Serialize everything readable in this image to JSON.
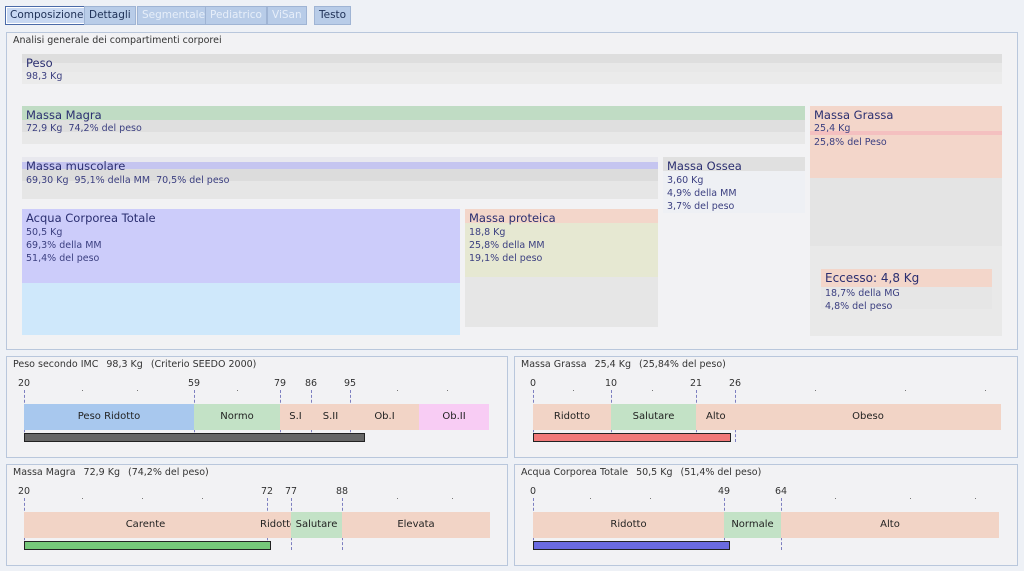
{
  "tabs": [
    {
      "label": "Composizione",
      "state": "active"
    },
    {
      "label": "Dettagli",
      "state": "normal"
    },
    {
      "label": "Segmentale",
      "state": "disabled"
    },
    {
      "label": "Pediatrico",
      "state": "disabled"
    },
    {
      "label": "ViSan",
      "state": "disabled"
    },
    {
      "label": "Testo",
      "state": "normal"
    }
  ],
  "composition": {
    "title": "Analisi generale dei compartimenti corporei",
    "peso": {
      "name": "Peso",
      "value": "98,3 Kg"
    },
    "massa_magra": {
      "name": "Massa Magra",
      "value": "72,9 Kg",
      "pct_peso": "74,2% del peso"
    },
    "massa_grassa": {
      "name": "Massa Grassa",
      "value": "25,4 Kg",
      "pct_peso": "25,8% del Peso"
    },
    "massa_muscolare": {
      "name": "Massa muscolare",
      "value": "69,30 Kg",
      "pct_mm": "95,1% della MM",
      "pct_peso": "70,5% del peso"
    },
    "massa_ossea": {
      "name": "Massa Ossea",
      "value": "3,60 Kg",
      "pct_mm": "4,9% della MM",
      "pct_peso": "3,7% del peso"
    },
    "acqua": {
      "name": "Acqua Corporea Totale",
      "value": "50,5 Kg",
      "pct_mm": "69,3% della MM",
      "pct_peso": "51,4% del peso"
    },
    "proteica": {
      "name": "Massa proteica",
      "value": "18,8 Kg",
      "pct_mm": "25,8% della MM",
      "pct_peso": "19,1% del peso"
    },
    "eccesso": {
      "name": "Eccesso: 4,8 Kg",
      "pct_mg": "18,7% della MG",
      "pct_peso": "4,8% del peso"
    }
  },
  "scales": {
    "imc": {
      "title": "Peso secondo IMC",
      "value": "98,3 Kg",
      "note": "(Criterio SEEDO 2000)",
      "ticks": [
        "20",
        "59",
        "79",
        "86",
        "95"
      ],
      "segments": [
        {
          "label": "Peso Ridotto",
          "color": "#a8c8ee"
        },
        {
          "label": "Normo",
          "color": "#c3e2c6"
        },
        {
          "label": "S.I",
          "color": "#f2d4c6"
        },
        {
          "label": "S.II",
          "color": "#f2d4c6"
        },
        {
          "label": "Ob.I",
          "color": "#f2d4c6"
        },
        {
          "label": "Ob.II",
          "color": "#f8ccf4"
        }
      ],
      "bar_color": "#666666",
      "range": [
        20,
        108
      ],
      "value_num": 98.3
    },
    "grassa": {
      "title": "Massa Grassa",
      "value": "25,4 Kg",
      "note": "(25,84% del peso)",
      "ticks": [
        "0",
        "10",
        "21",
        "26"
      ],
      "segments": [
        {
          "label": "Ridotto",
          "color": "#f2d4c6"
        },
        {
          "label": "Salutare",
          "color": "#c3e2c6"
        },
        {
          "label": "Alto",
          "color": "#f2d4c6"
        },
        {
          "label": "Obeso",
          "color": "#f2d4c6"
        }
      ],
      "bar_color": "#f07878"
    },
    "magra": {
      "title": "Massa Magra",
      "value": "72,9 Kg",
      "note": "(74,2% del peso)",
      "ticks": [
        "20",
        "72",
        "77",
        "88"
      ],
      "segments": [
        {
          "label": "Carente",
          "color": "#f2d4c6"
        },
        {
          "label": "Ridotto",
          "color": "#f2d4c6"
        },
        {
          "label": "Salutare",
          "color": "#c3e2c6"
        },
        {
          "label": "Elevata",
          "color": "#f2d4c6"
        }
      ],
      "bar_color": "#76c87a"
    },
    "acqua": {
      "title": "Acqua Corporea Totale",
      "value": "50,5 Kg",
      "note": "(51,4% del peso)",
      "ticks": [
        "0",
        "49",
        "64"
      ],
      "segments": [
        {
          "label": "Ridotto",
          "color": "#f2d4c6"
        },
        {
          "label": "Normale",
          "color": "#c3e2c6"
        },
        {
          "label": "Alto",
          "color": "#f2d4c6"
        }
      ],
      "bar_color": "#6a6ae0"
    }
  }
}
